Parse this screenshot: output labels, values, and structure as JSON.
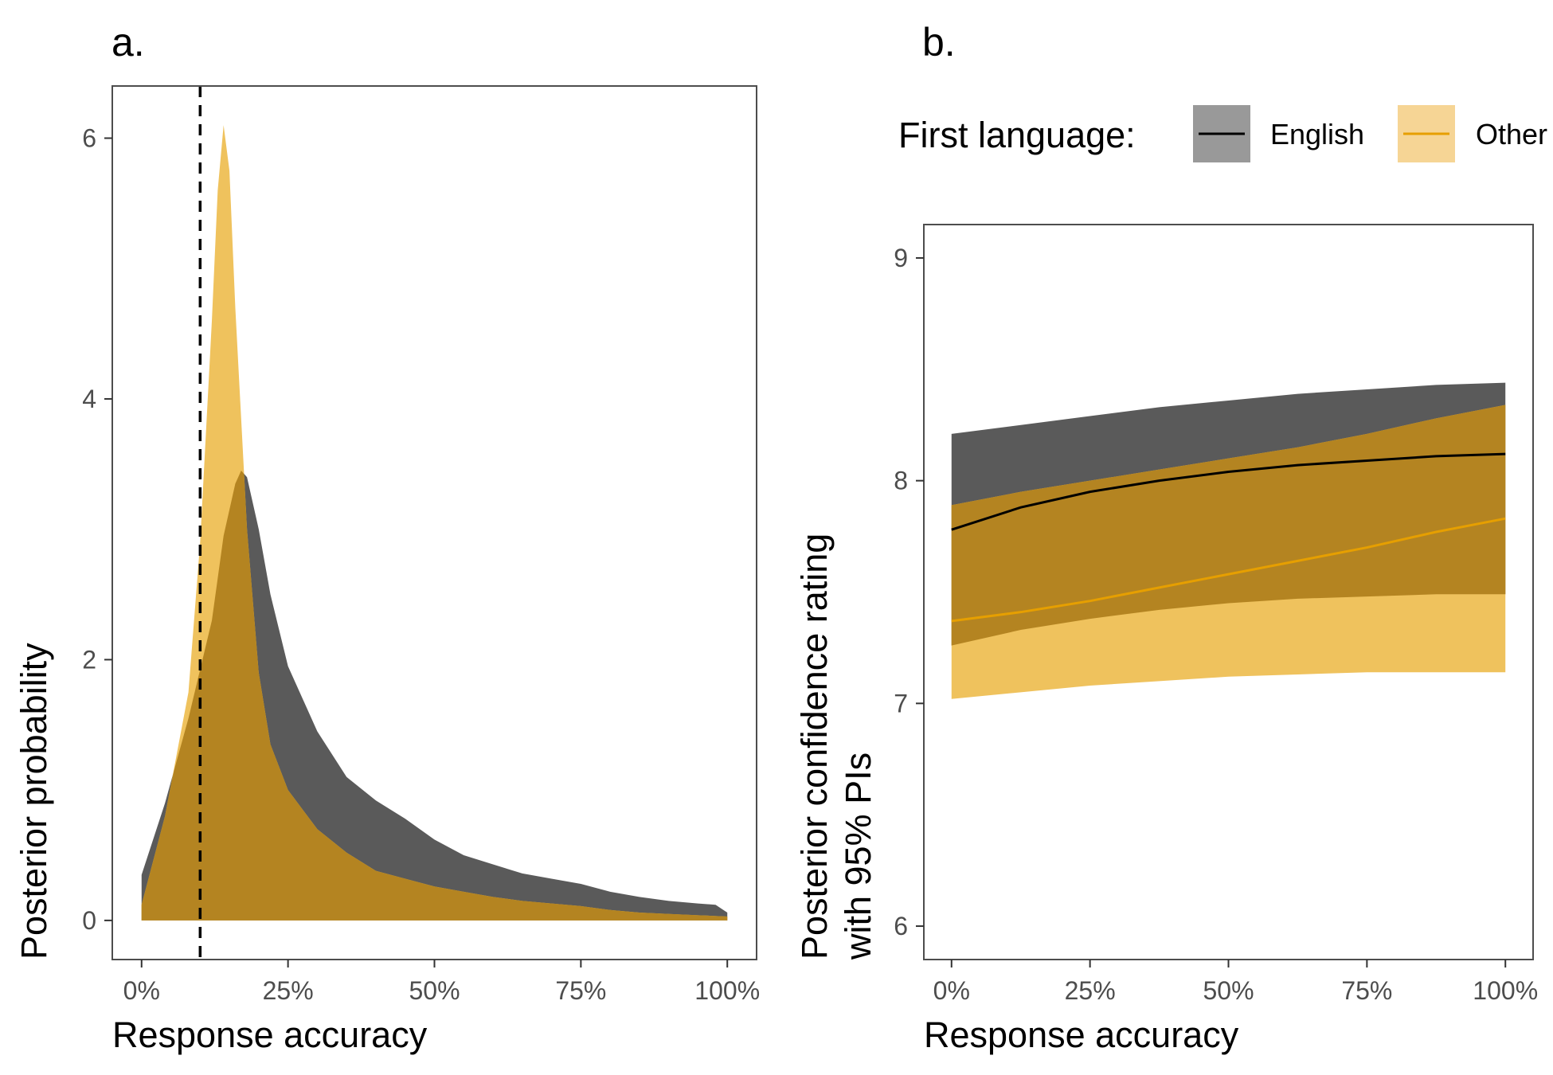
{
  "colors": {
    "english": "#5a5a5a",
    "other": "#efc25d",
    "overlap": "#b48421",
    "english_line": "#000000",
    "other_line": "#e69f00",
    "frame": "#4d4d4d",
    "ref_line": "#000000"
  },
  "chart_data": [
    {
      "panel_label": "a.",
      "type": "area",
      "xlabel": "Response accuracy",
      "ylabel": "Posterior probability",
      "xlim": [
        -0.05,
        1.05
      ],
      "ylim": [
        -0.3,
        6.4
      ],
      "x_ticks": [
        0,
        0.25,
        0.5,
        0.75,
        1.0
      ],
      "x_tick_labels": [
        "0%",
        "25%",
        "50%",
        "75%",
        "100%"
      ],
      "y_ticks": [
        0,
        2,
        4,
        6
      ],
      "y_tick_labels": [
        "0",
        "2",
        "4",
        "6"
      ],
      "grid": false,
      "reference_line": {
        "x": 0.1,
        "style": "dashed"
      },
      "series": [
        {
          "key": "english",
          "x": [
            0,
            0.04,
            0.08,
            0.12,
            0.14,
            0.16,
            0.17,
            0.18,
            0.2,
            0.22,
            0.25,
            0.3,
            0.35,
            0.4,
            0.45,
            0.5,
            0.55,
            0.6,
            0.65,
            0.7,
            0.75,
            0.8,
            0.85,
            0.9,
            0.95,
            0.98,
            1.0
          ],
          "y": [
            0.35,
            0.9,
            1.55,
            2.3,
            2.95,
            3.35,
            3.45,
            3.4,
            3.0,
            2.5,
            1.95,
            1.45,
            1.1,
            0.92,
            0.78,
            0.62,
            0.5,
            0.43,
            0.36,
            0.32,
            0.28,
            0.22,
            0.18,
            0.15,
            0.13,
            0.12,
            0.06
          ]
        },
        {
          "key": "other",
          "x": [
            0,
            0.04,
            0.08,
            0.1,
            0.12,
            0.13,
            0.14,
            0.15,
            0.16,
            0.18,
            0.2,
            0.22,
            0.25,
            0.3,
            0.35,
            0.4,
            0.45,
            0.5,
            0.55,
            0.6,
            0.65,
            0.7,
            0.75,
            0.8,
            0.85,
            0.9,
            0.95,
            1.0
          ],
          "y": [
            0.12,
            0.8,
            1.75,
            2.9,
            4.6,
            5.6,
            6.1,
            5.75,
            4.7,
            3.0,
            1.9,
            1.35,
            1.0,
            0.7,
            0.52,
            0.38,
            0.32,
            0.26,
            0.22,
            0.18,
            0.15,
            0.13,
            0.11,
            0.08,
            0.06,
            0.05,
            0.04,
            0.03
          ]
        }
      ]
    },
    {
      "panel_label": "b.",
      "type": "line",
      "xlabel": "Response accuracy",
      "ylabel": [
        "Posterior confidence rating",
        "with 95% PIs"
      ],
      "xlim": [
        -0.05,
        1.05
      ],
      "ylim": [
        5.85,
        9.15
      ],
      "x_ticks": [
        0,
        0.25,
        0.5,
        0.75,
        1.0
      ],
      "x_tick_labels": [
        "0%",
        "25%",
        "50%",
        "75%",
        "100%"
      ],
      "y_ticks": [
        6,
        7,
        8,
        9
      ],
      "y_tick_labels": [
        "6",
        "7",
        "8",
        "9"
      ],
      "grid": false,
      "legend": {
        "title": "First language:",
        "placement": "top",
        "entries": [
          {
            "key": "english",
            "label": "English"
          },
          {
            "key": "other",
            "label": "Other"
          }
        ]
      },
      "x": [
        0,
        0.125,
        0.25,
        0.375,
        0.5,
        0.625,
        0.75,
        0.875,
        1.0
      ],
      "series": [
        {
          "key": "english",
          "name": "English",
          "mean": [
            7.78,
            7.88,
            7.95,
            8.0,
            8.04,
            8.07,
            8.09,
            8.11,
            8.12
          ],
          "lower": [
            7.26,
            7.33,
            7.38,
            7.42,
            7.45,
            7.47,
            7.48,
            7.49,
            7.49
          ],
          "upper": [
            8.21,
            8.25,
            8.29,
            8.33,
            8.36,
            8.39,
            8.41,
            8.43,
            8.44
          ]
        },
        {
          "key": "other",
          "name": "Other",
          "mean": [
            7.37,
            7.41,
            7.46,
            7.52,
            7.58,
            7.64,
            7.7,
            7.77,
            7.83
          ],
          "lower": [
            7.02,
            7.05,
            7.08,
            7.1,
            7.12,
            7.13,
            7.14,
            7.14,
            7.14
          ],
          "upper": [
            7.89,
            7.95,
            8.0,
            8.05,
            8.1,
            8.15,
            8.21,
            8.28,
            8.34
          ]
        }
      ]
    }
  ]
}
